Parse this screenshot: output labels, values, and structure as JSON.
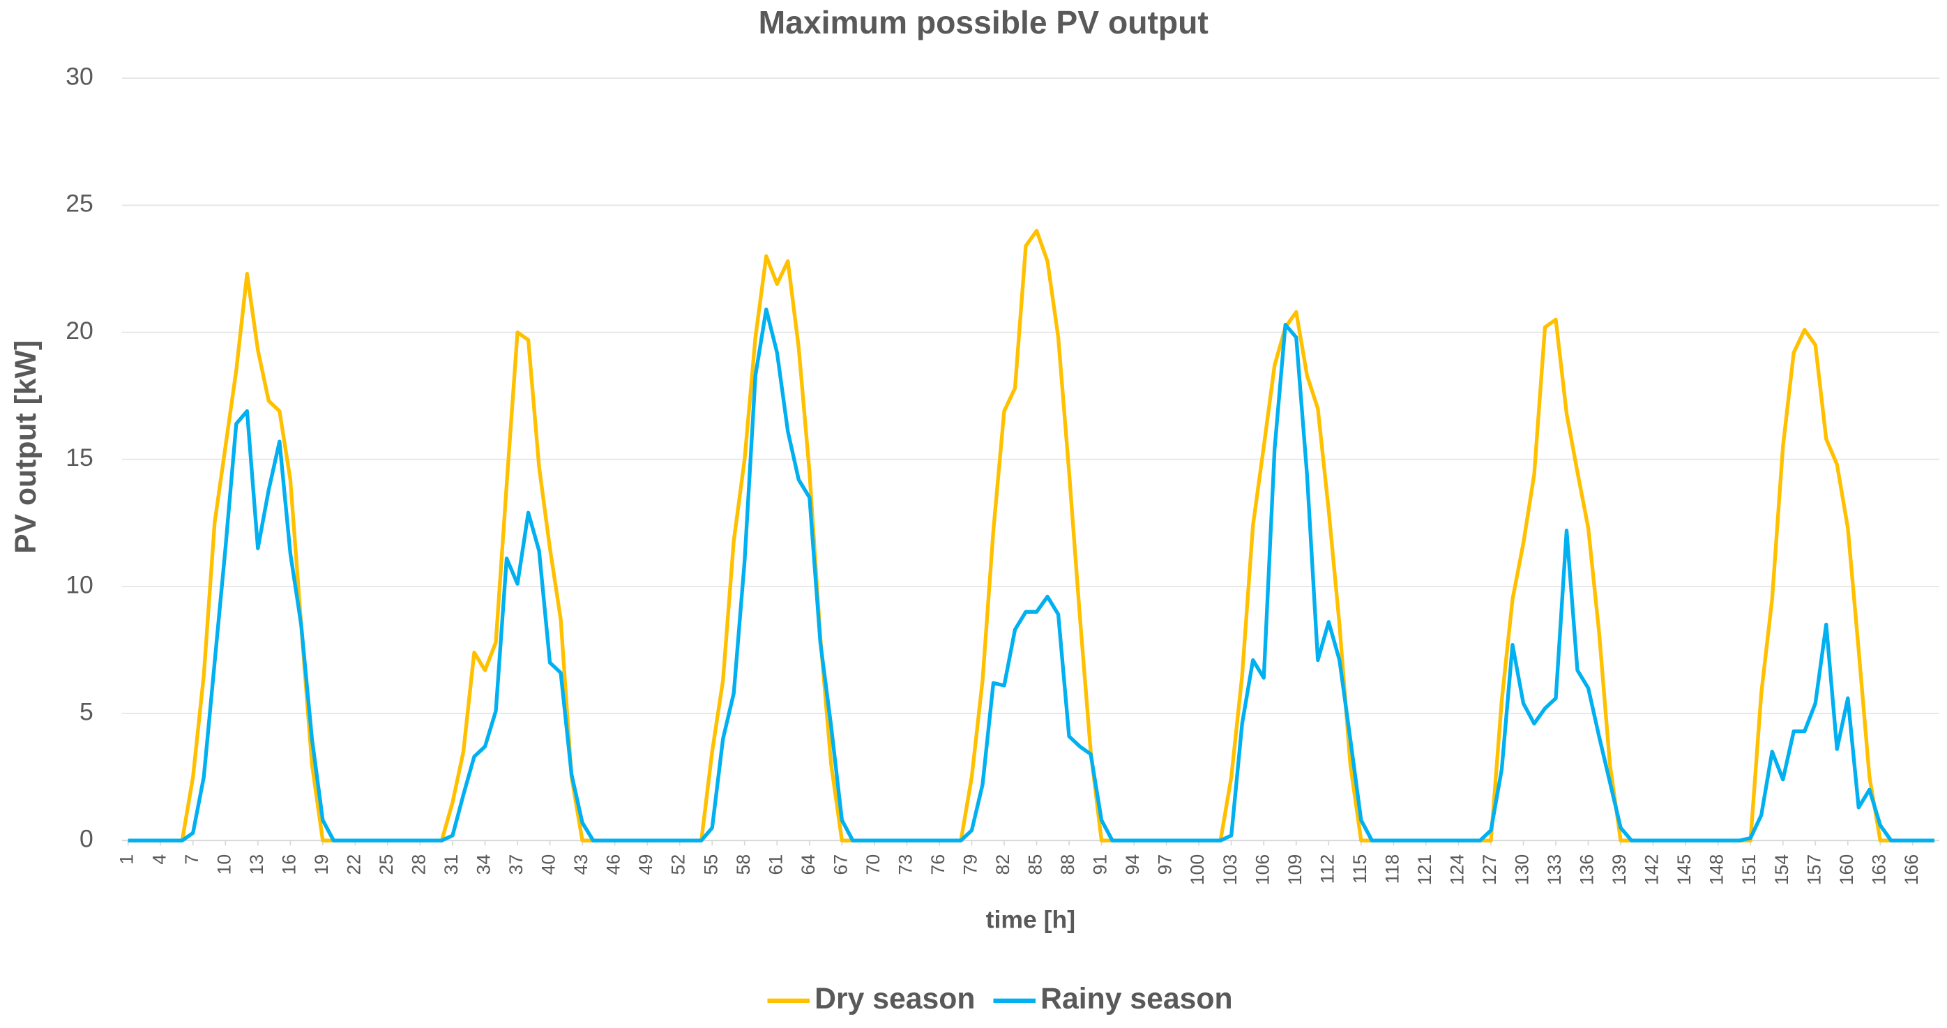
{
  "chart_data": {
    "type": "line",
    "title": "Maximum possible PV output",
    "x_label": "time [h]",
    "y_label": "PV output [kW]",
    "x": [
      1,
      2,
      3,
      4,
      5,
      6,
      7,
      8,
      9,
      10,
      11,
      12,
      13,
      14,
      15,
      16,
      17,
      18,
      19,
      20,
      21,
      22,
      23,
      24,
      25,
      26,
      27,
      28,
      29,
      30,
      31,
      32,
      33,
      34,
      35,
      36,
      37,
      38,
      39,
      40,
      41,
      42,
      43,
      44,
      45,
      46,
      47,
      48,
      49,
      50,
      51,
      52,
      53,
      54,
      55,
      56,
      57,
      58,
      59,
      60,
      61,
      62,
      63,
      64,
      65,
      66,
      67,
      68,
      69,
      70,
      71,
      72,
      73,
      74,
      75,
      76,
      77,
      78,
      79,
      80,
      81,
      82,
      83,
      84,
      85,
      86,
      87,
      88,
      89,
      90,
      91,
      92,
      93,
      94,
      95,
      96,
      97,
      98,
      99,
      100,
      101,
      102,
      103,
      104,
      105,
      106,
      107,
      108,
      109,
      110,
      111,
      112,
      113,
      114,
      115,
      116,
      117,
      118,
      119,
      120,
      121,
      122,
      123,
      124,
      125,
      126,
      127,
      128,
      129,
      130,
      131,
      132,
      133,
      134,
      135,
      136,
      137,
      138,
      139,
      140,
      141,
      142,
      143,
      144,
      145,
      146,
      147,
      148,
      149,
      150,
      151,
      152,
      153,
      154,
      155,
      156,
      157,
      158,
      159,
      160,
      161,
      162,
      163,
      164,
      165,
      166,
      167,
      168
    ],
    "xlim": [
      1,
      168
    ],
    "xticks": [
      1,
      4,
      7,
      10,
      13,
      16,
      19,
      22,
      25,
      28,
      31,
      34,
      37,
      40,
      43,
      46,
      49,
      52,
      55,
      58,
      61,
      64,
      67,
      70,
      73,
      76,
      79,
      82,
      85,
      88,
      91,
      94,
      97,
      100,
      103,
      106,
      109,
      112,
      115,
      118,
      121,
      124,
      127,
      130,
      133,
      136,
      139,
      142,
      145,
      148,
      151,
      154,
      157,
      160,
      163,
      166
    ],
    "ylim": [
      0,
      30
    ],
    "yticks": [
      0,
      5,
      10,
      15,
      20,
      25,
      30
    ],
    "grid": true,
    "legend": "bottom",
    "series": [
      {
        "name": "Dry season",
        "color": "#ffc000",
        "values": [
          0,
          0,
          0,
          0,
          0,
          0,
          2.5,
          6.5,
          12.5,
          15.5,
          18.5,
          22.3,
          19.3,
          17.3,
          16.9,
          14.2,
          8.5,
          3,
          0,
          0,
          0,
          0,
          0,
          0,
          0,
          0,
          0,
          0,
          0,
          0,
          1.5,
          3.5,
          7.4,
          6.7,
          7.8,
          14,
          20,
          19.7,
          14.7,
          11.5,
          8.7,
          2.5,
          0,
          0,
          0,
          0,
          0,
          0,
          0,
          0,
          0,
          0,
          0,
          0,
          3.5,
          6.3,
          11.8,
          15,
          19.8,
          23,
          21.9,
          22.8,
          19.4,
          14.5,
          8,
          3,
          0,
          0,
          0,
          0,
          0,
          0,
          0,
          0,
          0,
          0,
          0,
          0,
          2.5,
          6.3,
          12.2,
          16.9,
          17.8,
          23.4,
          24,
          22.8,
          19.8,
          14.5,
          8.8,
          3.5,
          0,
          0,
          0,
          0,
          0,
          0,
          0,
          0,
          0,
          0,
          0,
          0,
          2.5,
          6.5,
          12.4,
          15.5,
          18.7,
          20.2,
          20.8,
          18.3,
          17,
          13,
          8.5,
          3,
          0,
          0,
          0,
          0,
          0,
          0,
          0,
          0,
          0,
          0,
          0,
          0,
          0,
          5.5,
          9.5,
          11.7,
          14.4,
          20.2,
          20.5,
          16.8,
          14.5,
          12.3,
          8.2,
          3,
          0,
          0,
          0,
          0,
          0,
          0,
          0,
          0,
          0,
          0,
          0,
          0,
          0,
          5.8,
          9.5,
          15.5,
          19.2,
          20.1,
          19.5,
          15.8,
          14.8,
          12.3,
          7.5,
          2.5,
          0,
          0,
          0,
          0,
          0,
          0
        ]
      },
      {
        "name": "Rainy season",
        "color": "#00b0f0",
        "values": [
          0,
          0,
          0,
          0,
          0,
          0,
          0.3,
          2.5,
          7,
          11.5,
          16.4,
          16.9,
          11.5,
          13.8,
          15.7,
          11.3,
          8.5,
          4,
          0.8,
          0,
          0,
          0,
          0,
          0,
          0,
          0,
          0,
          0,
          0,
          0,
          0.2,
          1.8,
          3.3,
          3.7,
          5.1,
          11.1,
          10.1,
          12.9,
          11.4,
          7,
          6.6,
          2.6,
          0.7,
          0,
          0,
          0,
          0,
          0,
          0,
          0,
          0,
          0,
          0,
          0,
          0.5,
          4,
          5.8,
          11,
          18.3,
          20.9,
          19.2,
          16.1,
          14.2,
          13.5,
          7.8,
          4.5,
          0.8,
          0,
          0,
          0,
          0,
          0,
          0,
          0,
          0,
          0,
          0,
          0,
          0.4,
          2.2,
          6.2,
          6.1,
          8.3,
          9,
          9,
          9.6,
          8.9,
          4.1,
          3.7,
          3.4,
          0.8,
          0,
          0,
          0,
          0,
          0,
          0,
          0,
          0,
          0,
          0,
          0,
          0.2,
          4.6,
          7.1,
          6.4,
          15.4,
          20.3,
          19.8,
          14.4,
          7.1,
          8.6,
          7.1,
          4,
          0.8,
          0,
          0,
          0,
          0,
          0,
          0,
          0,
          0,
          0,
          0,
          0,
          0.4,
          2.8,
          7.7,
          5.4,
          4.6,
          5.2,
          5.6,
          12.2,
          6.7,
          6,
          4.1,
          2.3,
          0.5,
          0,
          0,
          0,
          0,
          0,
          0,
          0,
          0,
          0,
          0,
          0,
          0.1,
          1,
          3.5,
          2.4,
          4.3,
          4.3,
          5.4,
          8.5,
          3.6,
          5.6,
          1.3,
          2,
          0.6,
          0,
          0,
          0,
          0,
          0
        ]
      }
    ]
  }
}
